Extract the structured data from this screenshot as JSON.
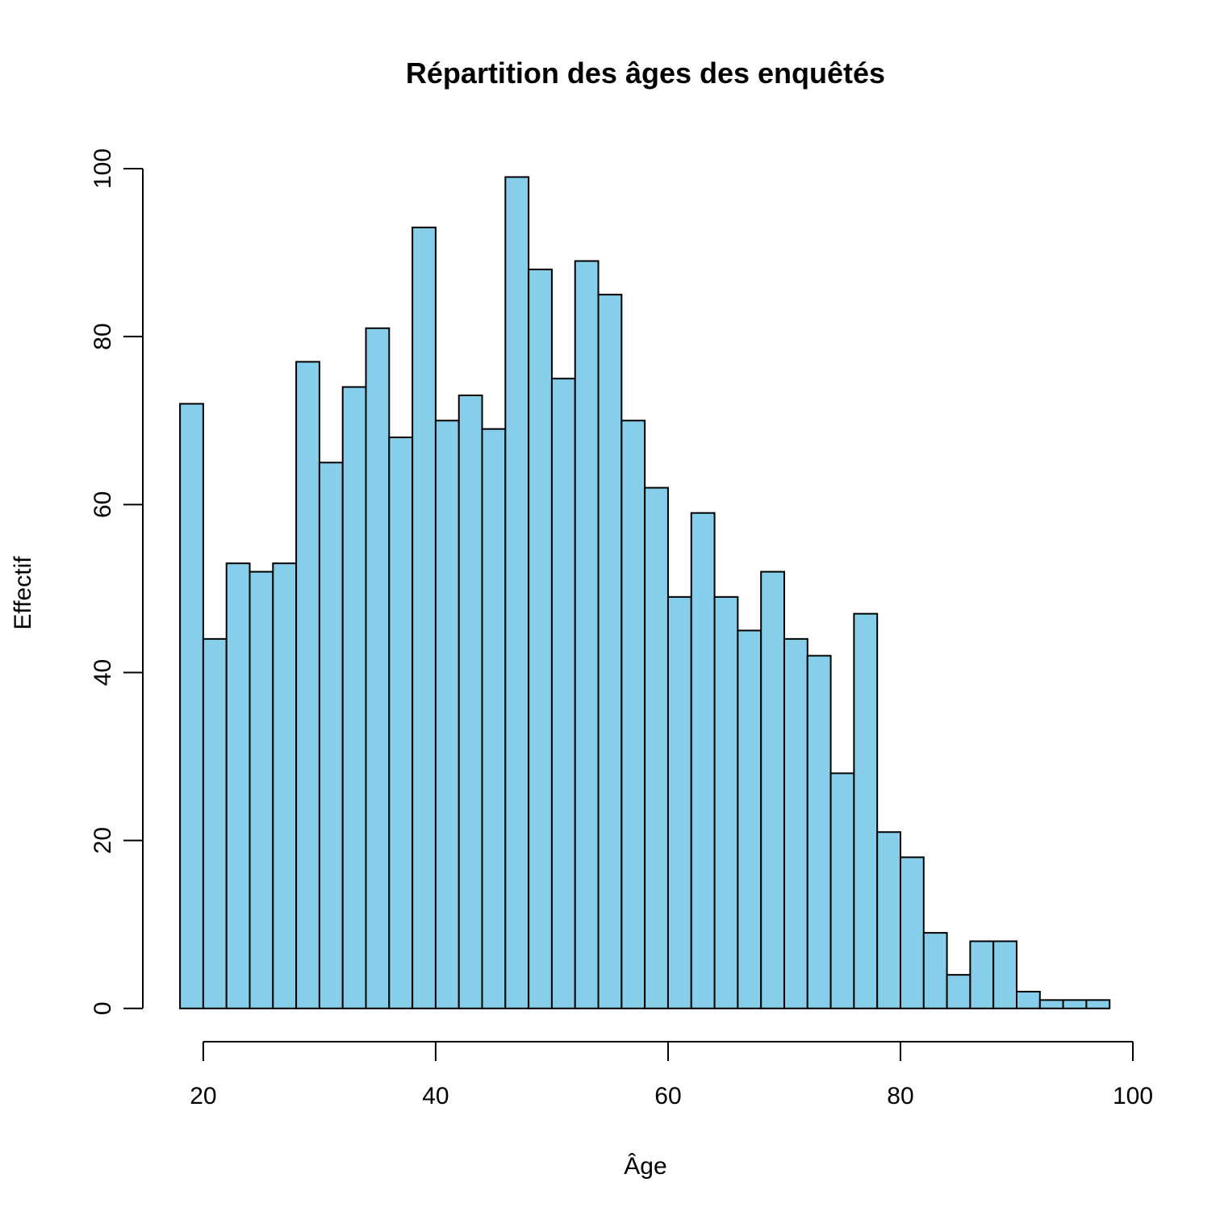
{
  "chart_data": {
    "type": "histogram",
    "title": "Répartition des âges des enquêtés",
    "x_label": "Âge",
    "y_label": "Effectif",
    "bins": [
      18,
      20,
      22,
      24,
      26,
      28,
      30,
      32,
      34,
      36,
      38,
      40,
      42,
      44,
      46,
      48,
      50,
      52,
      54,
      56,
      58,
      60,
      62,
      64,
      66,
      68,
      70,
      72,
      74,
      76,
      78,
      80,
      82,
      84,
      86,
      88,
      90,
      92,
      94,
      96,
      98
    ],
    "values": [
      72,
      44,
      53,
      52,
      53,
      77,
      65,
      74,
      81,
      68,
      93,
      70,
      73,
      69,
      99,
      88,
      75,
      89,
      85,
      70,
      62,
      49,
      59,
      49,
      45,
      52,
      44,
      42,
      28,
      47,
      21,
      18,
      9,
      4,
      8,
      8,
      2,
      1,
      1,
      1
    ],
    "color": "#87ceeb",
    "xlim": [
      14.8,
      101.2
    ],
    "xticks": [
      20,
      40,
      60,
      80,
      100
    ],
    "ylim": [
      -3.96,
      102.96
    ],
    "yticks": [
      0,
      20,
      40,
      60,
      80,
      100
    ]
  }
}
